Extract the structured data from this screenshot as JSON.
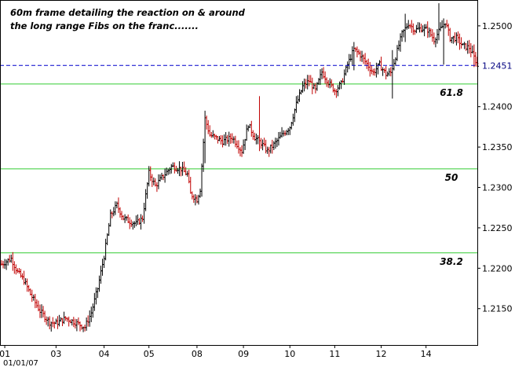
{
  "annotation": {
    "line1": "60m frame detailing the reaction on & around",
    "line2": "the long range Fibs on the franc......."
  },
  "last_price_label": "1.2451",
  "date_label": "01/01/07",
  "colors": {
    "background": "#ffffff",
    "frame": "#000000",
    "bar_up": "#000000",
    "bar_down": "#c00000",
    "fib_line": "#33cc33",
    "last_price_line": "#0000cc"
  },
  "chart_data": {
    "type": "ohlc",
    "instrument": "franc",
    "timeframe": "60m",
    "ylim": [
      1.2105,
      1.2532
    ],
    "y_ticks": [
      "1.2500",
      "1.2450",
      "1.2400",
      "1.2350",
      "1.2300",
      "1.2250",
      "1.2200",
      "1.2150"
    ],
    "x_ticks": [
      "01",
      "03",
      "04",
      "05",
      "08",
      "09",
      "10",
      "11",
      "12",
      "14"
    ],
    "x_tick_positions": [
      2,
      34,
      64,
      92,
      122,
      151,
      180,
      208,
      237,
      265
    ],
    "bar_count": 298,
    "fib_levels": [
      {
        "label": "61.8",
        "value": 1.2428
      },
      {
        "label": "50",
        "value": 1.2323
      },
      {
        "label": "38.2",
        "value": 1.2219
      }
    ],
    "last_price": 1.2451,
    "anchors": [
      [
        0,
        1.2205
      ],
      [
        6,
        1.2212
      ],
      [
        10,
        1.2195
      ],
      [
        14,
        1.2185
      ],
      [
        18,
        1.2168
      ],
      [
        24,
        1.2147
      ],
      [
        30,
        1.2133
      ],
      [
        34,
        1.2132
      ],
      [
        40,
        1.2138
      ],
      [
        46,
        1.2133
      ],
      [
        52,
        1.2127
      ],
      [
        56,
        1.2145
      ],
      [
        60,
        1.2175
      ],
      [
        64,
        1.2215
      ],
      [
        68,
        1.2265
      ],
      [
        72,
        1.2278
      ],
      [
        76,
        1.2262
      ],
      [
        80,
        1.2258
      ],
      [
        84,
        1.2255
      ],
      [
        88,
        1.2262
      ],
      [
        92,
        1.2318
      ],
      [
        96,
        1.2302
      ],
      [
        100,
        1.2312
      ],
      [
        106,
        1.2326
      ],
      [
        112,
        1.2323
      ],
      [
        116,
        1.2316
      ],
      [
        118,
        1.2292
      ],
      [
        122,
        1.2285
      ],
      [
        124,
        1.2298
      ],
      [
        127,
        1.2385
      ],
      [
        130,
        1.2365
      ],
      [
        138,
        1.2357
      ],
      [
        144,
        1.2362
      ],
      [
        150,
        1.2345
      ],
      [
        154,
        1.2378
      ],
      [
        158,
        1.2362
      ],
      [
        162,
        1.2355
      ],
      [
        166,
        1.2345
      ],
      [
        170,
        1.2353
      ],
      [
        176,
        1.2367
      ],
      [
        180,
        1.2375
      ],
      [
        184,
        1.2403
      ],
      [
        188,
        1.2425
      ],
      [
        192,
        1.2432
      ],
      [
        196,
        1.242
      ],
      [
        200,
        1.2443
      ],
      [
        204,
        1.243
      ],
      [
        208,
        1.242
      ],
      [
        212,
        1.2428
      ],
      [
        216,
        1.2452
      ],
      [
        220,
        1.2471
      ],
      [
        224,
        1.2464
      ],
      [
        228,
        1.2453
      ],
      [
        232,
        1.2442
      ],
      [
        236,
        1.2452
      ],
      [
        240,
        1.244
      ],
      [
        243,
        1.2442
      ],
      [
        246,
        1.2462
      ],
      [
        250,
        1.249
      ],
      [
        254,
        1.2503
      ],
      [
        258,
        1.2495
      ],
      [
        262,
        1.2497
      ],
      [
        266,
        1.2495
      ],
      [
        270,
        1.2483
      ],
      [
        274,
        1.2496
      ],
      [
        277,
        1.2505
      ],
      [
        280,
        1.2485
      ],
      [
        284,
        1.2485
      ],
      [
        288,
        1.2475
      ],
      [
        292,
        1.2473
      ],
      [
        297,
        1.2453
      ]
    ],
    "spikes": [
      {
        "bar": 127,
        "high": 1.2395,
        "low": 1.233
      },
      {
        "bar": 161,
        "high": 1.2413,
        "low": 1.2345
      },
      {
        "bar": 220,
        "high": 1.248,
        "low": 1.2445
      },
      {
        "bar": 244,
        "high": 1.247,
        "low": 1.241
      },
      {
        "bar": 252,
        "high": 1.2515,
        "low": 1.248
      },
      {
        "bar": 273,
        "high": 1.2528,
        "low": 1.2485
      },
      {
        "bar": 276,
        "high": 1.2493,
        "low": 1.2452
      },
      {
        "bar": 295,
        "high": 1.2477,
        "low": 1.2449
      }
    ]
  }
}
